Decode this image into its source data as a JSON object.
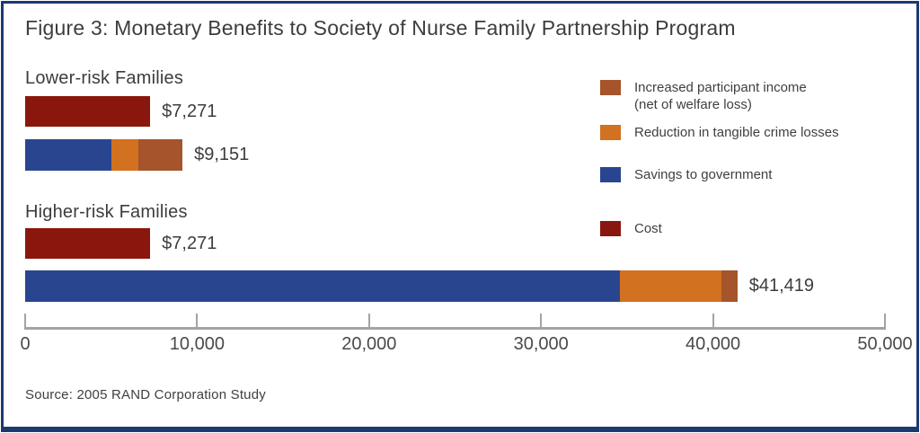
{
  "title": "Figure 3: Monetary Benefits to Society of Nurse Family Partnership Program",
  "source": "Source: 2005 RAND Corporation Study",
  "colors": {
    "border": "#1c3a70",
    "cost": "#8a170d",
    "savings": "#2a4590",
    "crime": "#d2711f",
    "income": "#a5542b",
    "axis": "#a3a3a3",
    "text": "#3d3d3d"
  },
  "legend": [
    {
      "key": "income",
      "label": "Increased participant income",
      "label2": "(net of welfare loss)"
    },
    {
      "key": "crime",
      "label": "Reduction in tangible crime losses"
    },
    {
      "key": "savings",
      "label": "Savings to government"
    },
    {
      "key": "cost",
      "label": "Cost"
    }
  ],
  "chart_data": {
    "type": "bar",
    "orientation": "horizontal",
    "title": "Figure 3: Monetary Benefits to Society of Nurse Family Partnership Program",
    "axis": {
      "min": 0,
      "max": 50000,
      "tick_values": [
        0,
        10000,
        20000,
        30000,
        40000,
        50000
      ],
      "tick_labels": [
        "0",
        "10,000",
        "20,000",
        "30,000",
        "40,000",
        "50,000"
      ]
    },
    "legend_position": "top-right",
    "groups": [
      {
        "label": "Lower-risk Families",
        "bars": [
          {
            "name": "cost",
            "total": 7271,
            "total_label": "$7,271",
            "segments": [
              {
                "key": "cost",
                "value": 7271
              }
            ]
          },
          {
            "name": "benefits",
            "total": 9151,
            "total_label": "$9,151",
            "segments": [
              {
                "key": "savings",
                "value": 4996
              },
              {
                "key": "crime",
                "value": 1578
              },
              {
                "key": "income",
                "value": 2577
              }
            ]
          }
        ]
      },
      {
        "label": "Higher-risk Families",
        "bars": [
          {
            "name": "cost",
            "total": 7271,
            "total_label": "$7,271",
            "segments": [
              {
                "key": "cost",
                "value": 7271
              }
            ]
          },
          {
            "name": "benefits",
            "total": 41419,
            "total_label": "$41,419",
            "segments": [
              {
                "key": "savings",
                "value": 34600
              },
              {
                "key": "crime",
                "value": 5900
              },
              {
                "key": "income",
                "value": 919
              }
            ]
          }
        ]
      }
    ]
  }
}
